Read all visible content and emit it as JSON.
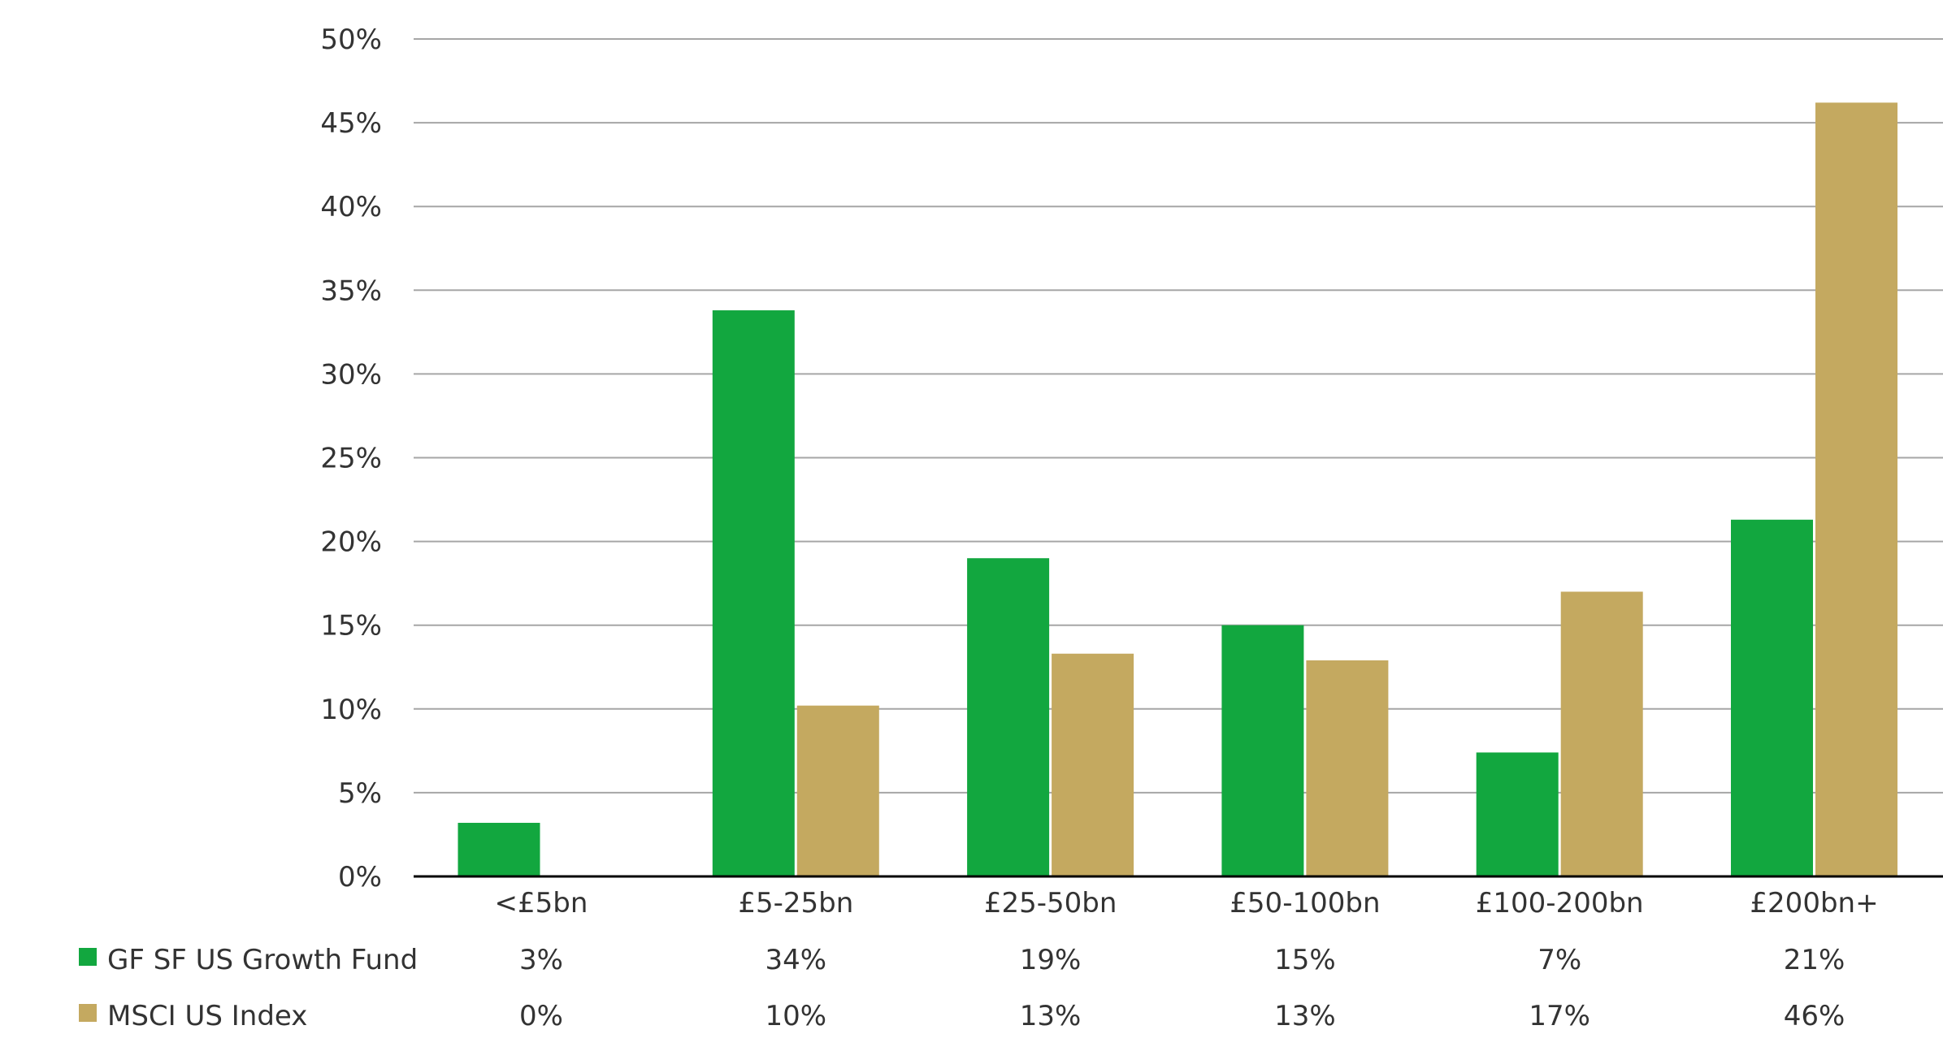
{
  "chart_data": {
    "type": "bar",
    "title": "",
    "xlabel": "",
    "ylabel": "",
    "categories": [
      "<£5bn",
      "£5-25bn",
      "£25-50bn",
      "£50-100bn",
      "£100-200bn",
      "£200bn+"
    ],
    "series": [
      {
        "name": "GF SF US Growth Fund",
        "color": "#12a73f",
        "values": [
          3.2,
          33.8,
          19.0,
          15.0,
          7.4,
          21.3
        ],
        "table_labels": [
          "3%",
          "34%",
          "19%",
          "15%",
          "7%",
          "21%"
        ]
      },
      {
        "name": "MSCI US Index",
        "color": "#c4a960",
        "values": [
          0,
          10.2,
          13.3,
          12.9,
          17.0,
          46.2
        ],
        "table_labels": [
          "0%",
          "10%",
          "13%",
          "13%",
          "17%",
          "46%"
        ]
      }
    ],
    "ylim": [
      0,
      50
    ],
    "yticks": [
      "0%",
      "5%",
      "10%",
      "15%",
      "20%",
      "25%",
      "30%",
      "35%",
      "40%",
      "45%",
      "50%"
    ],
    "grid": true,
    "legend": "bottom-left data table"
  }
}
